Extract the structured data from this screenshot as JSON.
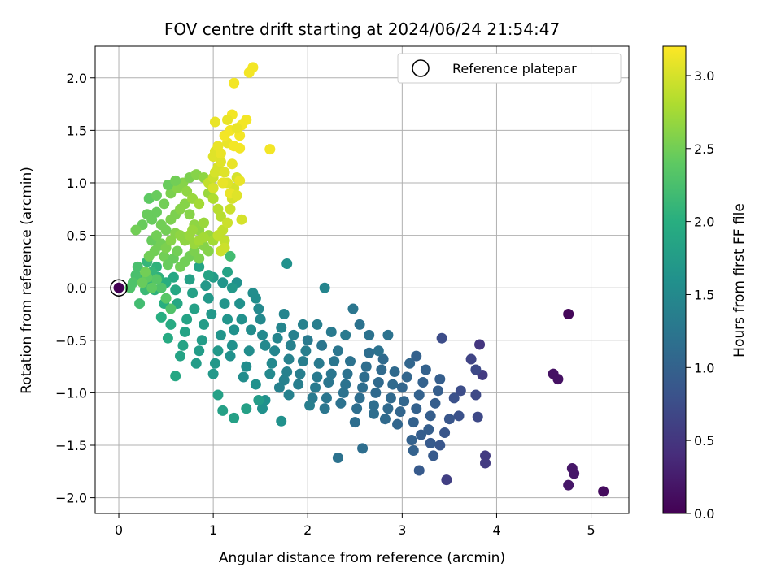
{
  "chart_data": {
    "type": "scatter",
    "title": "FOV centre drift starting at 2024/06/24 21:54:47",
    "xlabel": "Angular distance from reference (arcmin)",
    "ylabel": "Rotation from reference (arcmin)",
    "xlim": [
      -0.25,
      5.4
    ],
    "ylim": [
      -2.15,
      2.3
    ],
    "xticks": [
      0,
      1,
      2,
      3,
      4,
      5
    ],
    "xtick_labels": [
      "0",
      "1",
      "2",
      "3",
      "4",
      "5"
    ],
    "yticks": [
      -2.0,
      -1.5,
      -1.0,
      -0.5,
      0.0,
      0.5,
      1.0,
      1.5,
      2.0
    ],
    "ytick_labels": [
      "−2.0",
      "−1.5",
      "−1.0",
      "−0.5",
      "0.0",
      "0.5",
      "1.0",
      "1.5",
      "2.0"
    ],
    "grid": true,
    "colormap": "viridis",
    "colorbar": {
      "label": "Hours from first FF file",
      "range": [
        0.0,
        3.2
      ],
      "ticks": [
        0.0,
        0.5,
        1.0,
        1.5,
        2.0,
        2.5,
        3.0
      ],
      "tick_labels": [
        "0.0",
        "0.5",
        "1.0",
        "1.5",
        "2.0",
        "2.5",
        "3.0"
      ]
    },
    "legend": {
      "position": "top-right",
      "entries": [
        "Reference platepar"
      ]
    },
    "reference_point": {
      "x": 0,
      "y": 0,
      "hours": 0.0,
      "label": "Reference platepar"
    },
    "points": [
      [
        4.76,
        -0.25,
        0.05
      ],
      [
        4.6,
        -0.82,
        0.15
      ],
      [
        4.65,
        -0.87,
        0.15
      ],
      [
        4.8,
        -1.72,
        0.2
      ],
      [
        4.82,
        -1.77,
        0.2
      ],
      [
        4.76,
        -1.88,
        0.2
      ],
      [
        5.13,
        -1.94,
        0.1
      ],
      [
        3.82,
        -0.54,
        0.5
      ],
      [
        3.85,
        -0.83,
        0.55
      ],
      [
        3.88,
        -1.6,
        0.55
      ],
      [
        3.88,
        -1.67,
        0.55
      ],
      [
        3.47,
        -1.83,
        0.6
      ],
      [
        3.73,
        -0.68,
        0.65
      ],
      [
        3.78,
        -0.78,
        0.7
      ],
      [
        3.42,
        -0.48,
        0.75
      ],
      [
        3.78,
        -1.02,
        0.7
      ],
      [
        3.8,
        -1.23,
        0.7
      ],
      [
        3.62,
        -0.98,
        0.75
      ],
      [
        3.55,
        -1.05,
        0.8
      ],
      [
        3.6,
        -1.22,
        0.8
      ],
      [
        3.5,
        -1.25,
        0.85
      ],
      [
        3.45,
        -1.38,
        0.85
      ],
      [
        3.4,
        -1.5,
        0.85
      ],
      [
        3.3,
        -1.48,
        0.9
      ],
      [
        3.33,
        -1.6,
        0.9
      ],
      [
        3.18,
        -1.74,
        0.9
      ],
      [
        3.4,
        -0.87,
        0.95
      ],
      [
        3.38,
        -0.98,
        0.95
      ],
      [
        3.35,
        -1.1,
        0.95
      ],
      [
        3.3,
        -1.22,
        0.95
      ],
      [
        3.28,
        -1.35,
        0.95
      ],
      [
        3.2,
        -1.4,
        0.95
      ],
      [
        3.25,
        -0.78,
        1.0
      ],
      [
        3.22,
        -0.9,
        1.0
      ],
      [
        3.18,
        -1.02,
        1.0
      ],
      [
        3.15,
        -1.15,
        1.0
      ],
      [
        3.12,
        -1.28,
        1.0
      ],
      [
        3.1,
        -1.45,
        1.0
      ],
      [
        3.12,
        -1.55,
        1.0
      ],
      [
        3.15,
        -0.65,
        1.0
      ],
      [
        3.08,
        -0.72,
        1.05
      ],
      [
        3.05,
        -0.85,
        1.05
      ],
      [
        3.0,
        -0.95,
        1.05
      ],
      [
        3.02,
        -1.08,
        1.05
      ],
      [
        2.98,
        -1.18,
        1.05
      ],
      [
        2.95,
        -1.3,
        1.05
      ],
      [
        2.92,
        -0.8,
        1.1
      ],
      [
        2.9,
        -0.92,
        1.1
      ],
      [
        2.88,
        -1.05,
        1.1
      ],
      [
        2.85,
        -1.15,
        1.1
      ],
      [
        2.82,
        -1.25,
        1.1
      ],
      [
        2.8,
        -0.68,
        1.1
      ],
      [
        2.78,
        -0.78,
        1.1
      ],
      [
        2.75,
        -0.9,
        1.1
      ],
      [
        2.72,
        -1.0,
        1.1
      ],
      [
        2.7,
        -1.12,
        1.15
      ],
      [
        2.7,
        -1.2,
        1.15
      ],
      [
        2.65,
        -0.62,
        1.15
      ],
      [
        2.62,
        -0.75,
        1.15
      ],
      [
        2.6,
        -0.85,
        1.15
      ],
      [
        2.58,
        -0.95,
        1.15
      ],
      [
        2.55,
        -1.05,
        1.15
      ],
      [
        2.52,
        -1.15,
        1.15
      ],
      [
        2.5,
        -1.28,
        1.15
      ],
      [
        2.58,
        -1.53,
        1.15
      ],
      [
        2.75,
        -0.6,
        1.2
      ],
      [
        2.85,
        -0.45,
        1.2
      ],
      [
        2.65,
        -0.45,
        1.2
      ],
      [
        2.55,
        -0.35,
        1.2
      ],
      [
        2.45,
        -0.7,
        1.2
      ],
      [
        2.42,
        -0.82,
        1.2
      ],
      [
        2.4,
        -0.92,
        1.2
      ],
      [
        2.38,
        -1.0,
        1.2
      ],
      [
        2.35,
        -1.1,
        1.2
      ],
      [
        2.32,
        -1.62,
        1.2
      ],
      [
        2.48,
        -0.2,
        1.25
      ],
      [
        2.28,
        -0.7,
        1.25
      ],
      [
        2.25,
        -0.82,
        1.25
      ],
      [
        2.22,
        -0.9,
        1.25
      ],
      [
        2.2,
        -1.05,
        1.25
      ],
      [
        2.18,
        -1.15,
        1.25
      ],
      [
        2.15,
        -0.55,
        1.25
      ],
      [
        2.32,
        -0.6,
        1.25
      ],
      [
        2.4,
        -0.45,
        1.3
      ],
      [
        2.25,
        -0.42,
        1.3
      ],
      [
        2.12,
        -0.72,
        1.3
      ],
      [
        2.1,
        -0.85,
        1.3
      ],
      [
        2.08,
        -0.95,
        1.3
      ],
      [
        2.05,
        -1.05,
        1.3
      ],
      [
        2.0,
        -0.5,
        1.3
      ],
      [
        1.98,
        -0.6,
        1.35
      ],
      [
        1.95,
        -0.7,
        1.35
      ],
      [
        1.92,
        -0.82,
        1.35
      ],
      [
        1.9,
        -0.92,
        1.35
      ],
      [
        2.02,
        -1.12,
        1.35
      ],
      [
        2.1,
        -0.35,
        1.35
      ],
      [
        1.95,
        -0.35,
        1.4
      ],
      [
        1.85,
        -0.45,
        1.4
      ],
      [
        1.82,
        -0.55,
        1.4
      ],
      [
        1.8,
        -0.68,
        1.4
      ],
      [
        1.78,
        -0.8,
        1.4
      ],
      [
        1.75,
        -0.88,
        1.4
      ],
      [
        1.7,
        -0.95,
        1.4
      ],
      [
        1.8,
        -1.02,
        1.4
      ],
      [
        2.18,
        0.0,
        1.45
      ],
      [
        1.75,
        -0.25,
        1.45
      ],
      [
        1.72,
        -0.38,
        1.45
      ],
      [
        1.68,
        -0.48,
        1.45
      ],
      [
        1.65,
        -0.6,
        1.45
      ],
      [
        1.62,
        -0.72,
        1.5
      ],
      [
        1.6,
        -0.82,
        1.5
      ],
      [
        1.55,
        -0.55,
        1.5
      ],
      [
        1.52,
        -0.45,
        1.5
      ],
      [
        1.5,
        -0.3,
        1.5
      ],
      [
        1.48,
        -0.2,
        1.5
      ],
      [
        1.45,
        -0.1,
        1.55
      ],
      [
        1.42,
        -0.05,
        1.55
      ],
      [
        1.4,
        -0.4,
        1.55
      ],
      [
        1.38,
        -0.6,
        1.55
      ],
      [
        1.35,
        -0.75,
        1.55
      ],
      [
        1.32,
        -0.85,
        1.55
      ],
      [
        1.3,
        -0.3,
        1.6
      ],
      [
        1.28,
        -0.15,
        1.6
      ],
      [
        1.25,
        0.05,
        1.6
      ],
      [
        1.22,
        -0.4,
        1.6
      ],
      [
        1.2,
        -0.55,
        1.6
      ],
      [
        1.18,
        -0.65,
        1.6
      ],
      [
        1.72,
        -1.27,
        1.6
      ],
      [
        1.55,
        -1.07,
        1.6
      ],
      [
        1.52,
        -1.15,
        1.6
      ],
      [
        1.45,
        -0.92,
        1.6
      ],
      [
        1.78,
        0.23,
        1.6
      ],
      [
        1.15,
        -0.3,
        1.65
      ],
      [
        1.12,
        -0.15,
        1.65
      ],
      [
        1.1,
        0.05,
        1.65
      ],
      [
        1.08,
        -0.45,
        1.65
      ],
      [
        1.05,
        -0.6,
        1.7
      ],
      [
        1.02,
        -0.72,
        1.7
      ],
      [
        1.0,
        -0.82,
        1.7
      ],
      [
        0.98,
        -0.25,
        1.7
      ],
      [
        0.95,
        -0.1,
        1.7
      ],
      [
        0.92,
        0.02,
        1.7
      ],
      [
        0.9,
        -0.35,
        1.75
      ],
      [
        0.88,
        -0.5,
        1.75
      ],
      [
        0.85,
        -0.6,
        1.75
      ],
      [
        0.82,
        -0.72,
        1.75
      ],
      [
        0.8,
        -0.2,
        1.8
      ],
      [
        0.78,
        -0.05,
        1.8
      ],
      [
        0.75,
        0.08,
        1.8
      ],
      [
        1.35,
        -1.15,
        1.8
      ],
      [
        1.22,
        -1.24,
        1.8
      ],
      [
        1.1,
        -1.17,
        1.8
      ],
      [
        1.05,
        -1.02,
        1.8
      ],
      [
        1.48,
        -1.07,
        1.75
      ],
      [
        0.72,
        -0.3,
        1.85
      ],
      [
        0.7,
        -0.42,
        1.85
      ],
      [
        0.68,
        -0.55,
        1.85
      ],
      [
        0.65,
        -0.65,
        1.85
      ],
      [
        0.6,
        -0.84,
        1.9
      ],
      [
        0.62,
        -0.15,
        1.9
      ],
      [
        0.6,
        -0.02,
        1.9
      ],
      [
        0.58,
        0.1,
        1.9
      ],
      [
        0.55,
        -0.35,
        1.95
      ],
      [
        0.52,
        -0.48,
        1.95
      ],
      [
        1.15,
        0.15,
        1.85
      ],
      [
        1.2,
        0.0,
        1.7
      ],
      [
        1.0,
        0.1,
        1.75
      ],
      [
        0.85,
        0.2,
        1.85
      ],
      [
        0.95,
        0.12,
        1.85
      ],
      [
        0.5,
        0.05,
        2.0
      ],
      [
        0.48,
        -0.15,
        2.0
      ],
      [
        0.45,
        -0.28,
        2.0
      ],
      [
        0.42,
        0.1,
        2.05
      ],
      [
        0.4,
        0.2,
        2.05
      ],
      [
        0.38,
        -0.02,
        2.05
      ],
      [
        0.35,
        0.15,
        2.1
      ],
      [
        0.32,
        0.05,
        2.1
      ],
      [
        0.3,
        0.25,
        2.1
      ],
      [
        0.28,
        -0.02,
        2.15
      ],
      [
        0.25,
        0.1,
        2.15
      ],
      [
        0.22,
        -0.15,
        2.2
      ],
      [
        0.2,
        0.2,
        2.25
      ],
      [
        0.18,
        0.12,
        2.25
      ],
      [
        0.15,
        0.05,
        2.3
      ],
      [
        0.12,
        0.0,
        2.3
      ],
      [
        0.55,
        -0.2,
        2.3
      ],
      [
        0.5,
        -0.1,
        2.35
      ],
      [
        0.45,
        0.0,
        2.3
      ],
      [
        0.4,
        0.08,
        2.35
      ],
      [
        0.35,
        0.0,
        2.4
      ],
      [
        0.3,
        0.1,
        2.4
      ],
      [
        0.25,
        0.05,
        2.45
      ],
      [
        0.28,
        0.15,
        2.5
      ],
      [
        0.32,
        0.3,
        2.5
      ],
      [
        0.38,
        0.35,
        2.5
      ],
      [
        0.42,
        0.4,
        2.5
      ],
      [
        0.48,
        0.3,
        2.5
      ],
      [
        0.52,
        0.22,
        2.45
      ],
      [
        0.58,
        0.28,
        2.45
      ],
      [
        0.62,
        0.35,
        2.5
      ],
      [
        0.65,
        0.2,
        2.5
      ],
      [
        0.7,
        0.25,
        2.5
      ],
      [
        0.75,
        0.3,
        2.5
      ],
      [
        0.8,
        0.35,
        2.55
      ],
      [
        0.85,
        0.28,
        2.55
      ],
      [
        0.9,
        0.4,
        2.6
      ],
      [
        0.95,
        0.35,
        2.6
      ],
      [
        0.25,
        0.6,
        2.45
      ],
      [
        0.3,
        0.7,
        2.45
      ],
      [
        0.35,
        0.65,
        2.45
      ],
      [
        0.4,
        0.72,
        2.45
      ],
      [
        0.45,
        0.6,
        2.5
      ],
      [
        0.5,
        0.55,
        2.5
      ],
      [
        0.55,
        0.65,
        2.55
      ],
      [
        0.6,
        0.7,
        2.55
      ],
      [
        0.65,
        0.75,
        2.6
      ],
      [
        0.7,
        0.8,
        2.6
      ],
      [
        0.75,
        0.7,
        2.6
      ],
      [
        0.8,
        0.6,
        2.65
      ],
      [
        0.85,
        0.55,
        2.65
      ],
      [
        0.9,
        0.62,
        2.7
      ],
      [
        0.95,
        0.5,
        2.7
      ],
      [
        1.0,
        0.45,
        2.75
      ],
      [
        0.35,
        0.45,
        2.45
      ],
      [
        0.4,
        0.5,
        2.5
      ],
      [
        0.45,
        0.42,
        2.5
      ],
      [
        0.5,
        0.38,
        2.55
      ],
      [
        0.55,
        0.45,
        2.6
      ],
      [
        0.6,
        0.52,
        2.6
      ],
      [
        0.65,
        0.5,
        2.65
      ],
      [
        0.7,
        0.45,
        2.65
      ],
      [
        0.75,
        0.5,
        2.7
      ],
      [
        0.8,
        0.42,
        2.7
      ],
      [
        0.85,
        0.45,
        2.75
      ],
      [
        0.9,
        0.48,
        2.75
      ],
      [
        0.18,
        0.55,
        2.5
      ],
      [
        0.32,
        0.85,
        2.4
      ],
      [
        0.4,
        0.88,
        2.45
      ],
      [
        0.48,
        0.8,
        2.5
      ],
      [
        0.55,
        0.9,
        2.55
      ],
      [
        0.62,
        0.95,
        2.6
      ],
      [
        0.68,
        1.0,
        2.6
      ],
      [
        0.72,
        0.92,
        2.65
      ],
      [
        0.78,
        0.85,
        2.7
      ],
      [
        0.85,
        0.8,
        2.75
      ],
      [
        0.52,
        0.98,
        2.45
      ],
      [
        0.6,
        1.02,
        2.5
      ],
      [
        0.75,
        1.05,
        2.55
      ],
      [
        0.82,
        1.08,
        2.6
      ],
      [
        0.9,
        1.05,
        2.65
      ],
      [
        0.95,
        0.9,
        2.7
      ],
      [
        1.0,
        0.85,
        2.8
      ],
      [
        1.05,
        0.75,
        2.85
      ],
      [
        1.08,
        0.68,
        2.85
      ],
      [
        1.1,
        0.55,
        2.9
      ],
      [
        1.05,
        0.5,
        2.9
      ],
      [
        1.12,
        0.45,
        2.9
      ],
      [
        1.15,
        0.62,
        2.95
      ],
      [
        1.18,
        0.75,
        2.95
      ],
      [
        1.2,
        0.85,
        3.0
      ],
      [
        1.22,
        0.95,
        3.0
      ],
      [
        1.25,
        1.05,
        3.0
      ],
      [
        0.95,
        1.0,
        2.9
      ],
      [
        1.0,
        1.05,
        2.95
      ],
      [
        1.02,
        1.1,
        3.0
      ],
      [
        1.05,
        1.15,
        3.0
      ],
      [
        1.08,
        1.2,
        3.05
      ],
      [
        1.12,
        1.1,
        3.05
      ],
      [
        1.15,
        1.0,
        3.05
      ],
      [
        1.18,
        0.9,
        3.1
      ],
      [
        1.0,
        1.25,
        3.05
      ],
      [
        1.02,
        1.3,
        3.05
      ],
      [
        1.05,
        1.35,
        3.1
      ],
      [
        1.08,
        1.28,
        3.1
      ],
      [
        1.1,
        1.0,
        3.1
      ],
      [
        1.0,
        0.95,
        3.0
      ],
      [
        1.25,
        0.88,
        3.05
      ],
      [
        1.28,
        1.02,
        3.1
      ],
      [
        1.2,
        1.18,
        3.1
      ],
      [
        1.15,
        1.38,
        3.1
      ],
      [
        1.12,
        1.45,
        3.15
      ],
      [
        1.18,
        1.5,
        3.15
      ],
      [
        1.22,
        1.35,
        3.15
      ],
      [
        1.28,
        1.45,
        3.15
      ],
      [
        1.3,
        1.55,
        3.15
      ],
      [
        1.35,
        1.6,
        3.15
      ],
      [
        1.25,
        1.52,
        3.1
      ],
      [
        1.2,
        1.65,
        3.15
      ],
      [
        1.15,
        1.6,
        3.1
      ],
      [
        1.02,
        1.58,
        3.1
      ],
      [
        1.28,
        1.33,
        3.15
      ],
      [
        1.3,
        0.65,
        3.0
      ],
      [
        1.6,
        1.32,
        3.15
      ],
      [
        1.38,
        2.05,
        3.15
      ],
      [
        1.42,
        2.1,
        3.15
      ],
      [
        1.22,
        1.95,
        3.15
      ],
      [
        1.08,
        0.35,
        2.95
      ],
      [
        1.12,
        0.38,
        2.95
      ],
      [
        0.78,
        0.55,
        2.7
      ],
      [
        1.18,
        0.3,
        2.2
      ]
    ]
  }
}
